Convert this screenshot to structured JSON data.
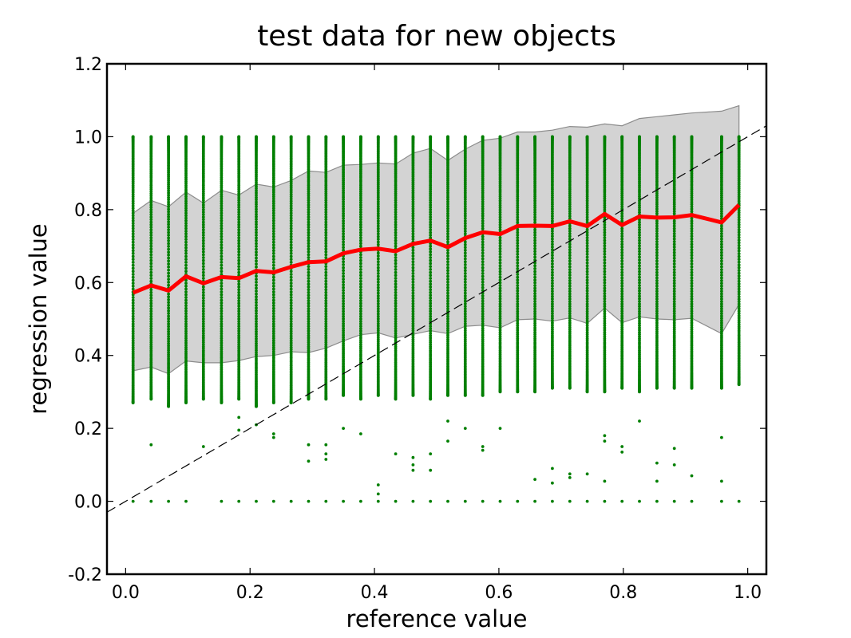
{
  "chart_data": {
    "type": "scatter",
    "title": "test data for new objects",
    "xlabel": "reference value",
    "ylabel": "regression value",
    "xlim": [
      -0.03,
      1.03
    ],
    "ylim": [
      -0.2,
      1.2
    ],
    "xticks": [
      "0.0",
      "0.2",
      "0.4",
      "0.6",
      "0.8",
      "1.0"
    ],
    "yticks": [
      "-0.2",
      "0.0",
      "0.2",
      "0.4",
      "0.6",
      "0.8",
      "1.0",
      "1.2"
    ],
    "grid": false,
    "legend": "none",
    "colors": {
      "points": "#007f00",
      "mean_line": "#ff0000",
      "band_fill": "#d3d3d3",
      "band_edge": "#8c8c8c",
      "identity_line": "#000000"
    },
    "x": [
      0.012,
      0.041,
      0.069,
      0.097,
      0.125,
      0.154,
      0.182,
      0.21,
      0.238,
      0.266,
      0.294,
      0.322,
      0.35,
      0.378,
      0.406,
      0.434,
      0.462,
      0.49,
      0.518,
      0.546,
      0.574,
      0.602,
      0.63,
      0.658,
      0.686,
      0.714,
      0.742,
      0.77,
      0.798,
      0.826,
      0.854,
      0.882,
      0.91,
      0.958,
      0.986
    ],
    "series": [
      {
        "values": [
          0.572,
          0.592,
          0.578,
          0.617,
          0.598,
          0.615,
          0.612,
          0.632,
          0.628,
          0.643,
          0.656,
          0.658,
          0.68,
          0.69,
          0.693,
          0.686,
          0.706,
          0.715,
          0.697,
          0.722,
          0.738,
          0.733,
          0.755,
          0.756,
          0.755,
          0.768,
          0.755,
          0.788,
          0.758,
          0.781,
          0.778,
          0.779,
          0.785,
          0.765,
          0.813
        ]
      }
    ],
    "band_upper": [
      0.79,
      0.825,
      0.808,
      0.848,
      0.818,
      0.853,
      0.84,
      0.87,
      0.862,
      0.88,
      0.906,
      0.902,
      0.922,
      0.924,
      0.928,
      0.925,
      0.955,
      0.968,
      0.935,
      0.966,
      0.99,
      0.996,
      1.013,
      1.013,
      1.018,
      1.028,
      1.026,
      1.035,
      1.03,
      1.05,
      1.055,
      1.06,
      1.065,
      1.07,
      1.085
    ],
    "band_lower": [
      0.358,
      0.368,
      0.35,
      0.385,
      0.38,
      0.38,
      0.386,
      0.397,
      0.4,
      0.41,
      0.408,
      0.42,
      0.44,
      0.457,
      0.462,
      0.448,
      0.458,
      0.468,
      0.46,
      0.48,
      0.483,
      0.476,
      0.498,
      0.5,
      0.494,
      0.503,
      0.488,
      0.53,
      0.49,
      0.506,
      0.5,
      0.498,
      0.502,
      0.46,
      0.54
    ],
    "scatter_range_low": [
      0.27,
      0.28,
      0.26,
      0.27,
      0.28,
      0.27,
      0.28,
      0.26,
      0.27,
      0.27,
      0.28,
      0.28,
      0.29,
      0.28,
      0.29,
      0.28,
      0.29,
      0.28,
      0.29,
      0.29,
      0.29,
      0.3,
      0.3,
      0.3,
      0.31,
      0.31,
      0.3,
      0.3,
      0.31,
      0.3,
      0.31,
      0.31,
      0.31,
      0.31,
      0.32
    ],
    "scatter_range_high": [
      1.0,
      1.0,
      1.0,
      1.0,
      1.0,
      1.0,
      1.0,
      1.0,
      1.0,
      1.0,
      1.0,
      1.0,
      1.0,
      1.0,
      1.0,
      1.0,
      1.0,
      1.0,
      1.0,
      1.0,
      1.0,
      1.0,
      1.0,
      1.0,
      1.0,
      1.0,
      1.0,
      1.0,
      1.0,
      1.0,
      1.0,
      1.0,
      1.0,
      1.0,
      1.0
    ],
    "scatter_outliers": [
      [
        0.041,
        0.155
      ],
      [
        0.125,
        0.15
      ],
      [
        0.182,
        0.23
      ],
      [
        0.182,
        0.195
      ],
      [
        0.21,
        0.21
      ],
      [
        0.238,
        0.185
      ],
      [
        0.238,
        0.175
      ],
      [
        0.294,
        0.155
      ],
      [
        0.294,
        0.11
      ],
      [
        0.322,
        0.155
      ],
      [
        0.322,
        0.13
      ],
      [
        0.322,
        0.115
      ],
      [
        0.35,
        0.2
      ],
      [
        0.378,
        0.185
      ],
      [
        0.406,
        0.045
      ],
      [
        0.406,
        0.02
      ],
      [
        0.434,
        0.13
      ],
      [
        0.462,
        0.12
      ],
      [
        0.462,
        0.1
      ],
      [
        0.462,
        0.085
      ],
      [
        0.49,
        0.13
      ],
      [
        0.49,
        0.085
      ],
      [
        0.518,
        0.22
      ],
      [
        0.518,
        0.165
      ],
      [
        0.546,
        0.2
      ],
      [
        0.574,
        0.15
      ],
      [
        0.574,
        0.14
      ],
      [
        0.602,
        0.2
      ],
      [
        0.658,
        0.06
      ],
      [
        0.686,
        0.09
      ],
      [
        0.686,
        0.05
      ],
      [
        0.714,
        0.075
      ],
      [
        0.714,
        0.065
      ],
      [
        0.742,
        0.075
      ],
      [
        0.77,
        0.18
      ],
      [
        0.77,
        0.165
      ],
      [
        0.77,
        0.055
      ],
      [
        0.798,
        0.15
      ],
      [
        0.798,
        0.135
      ],
      [
        0.826,
        0.22
      ],
      [
        0.854,
        0.105
      ],
      [
        0.854,
        0.055
      ],
      [
        0.882,
        0.145
      ],
      [
        0.882,
        0.1
      ],
      [
        0.91,
        0.07
      ],
      [
        0.958,
        0.175
      ],
      [
        0.958,
        0.055
      ]
    ],
    "zero_points_x": [
      0.012,
      0.041,
      0.069,
      0.097,
      0.154,
      0.182,
      0.21,
      0.238,
      0.266,
      0.294,
      0.322,
      0.35,
      0.378,
      0.406,
      0.434,
      0.462,
      0.49,
      0.518,
      0.546,
      0.574,
      0.602,
      0.63,
      0.658,
      0.686,
      0.714,
      0.742,
      0.77,
      0.798,
      0.826,
      0.854,
      0.882,
      0.91,
      0.958,
      0.986
    ],
    "identity_line": {
      "from": [
        -0.03,
        -0.03
      ],
      "to": [
        1.03,
        1.03
      ]
    }
  }
}
